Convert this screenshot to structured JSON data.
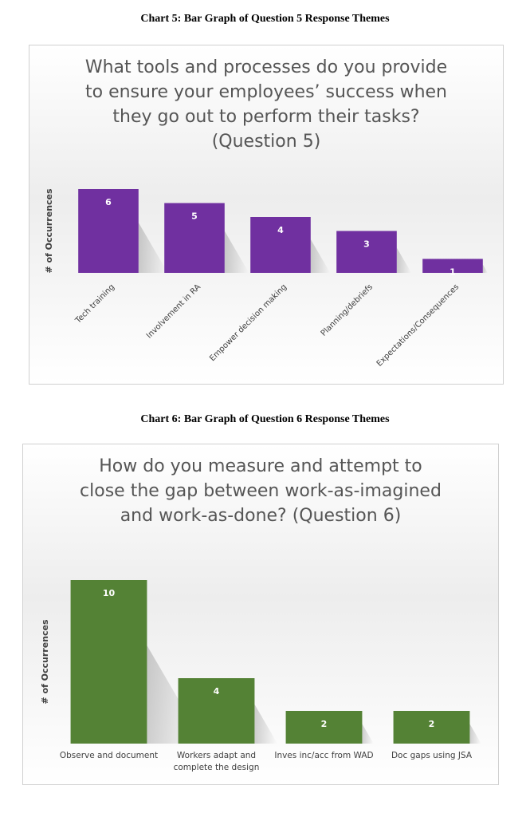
{
  "captions": {
    "chart5": "Chart 5: Bar Graph of Question 5 Response Themes",
    "chart6": "Chart 6: Bar Graph of Question 6 Response Themes"
  },
  "chart_data": [
    {
      "type": "bar",
      "title_lines": [
        "What tools and processes do you provide",
        "to ensure your employees’ success when",
        "they go out to perform their tasks?",
        "(Question 5)"
      ],
      "ylabel": "# of Occurrences",
      "xlabel": "",
      "categories": [
        "Tech training",
        "Involvement in RA",
        "Empower decision making",
        "Planning/debriefs",
        "Expectations/Consequences"
      ],
      "values": [
        6,
        5,
        4,
        3,
        1
      ],
      "data_labels": [
        "6",
        "5",
        "4",
        "3",
        "1"
      ],
      "ylim": [
        0,
        6
      ],
      "grid": false,
      "legend": "none",
      "bar_color": "#7030a0"
    },
    {
      "type": "bar",
      "title_lines": [
        "How do you measure and attempt to",
        "close the gap between work-as-imagined",
        "and work-as-done? (Question 6)"
      ],
      "ylabel": "# of Occurrences",
      "xlabel": "",
      "categories": [
        [
          "Observe and document"
        ],
        [
          "Workers adapt and",
          "complete the design"
        ],
        [
          "Inves inc/acc from WAD"
        ],
        [
          "Doc gaps using JSA"
        ]
      ],
      "values": [
        10,
        4,
        2,
        2
      ],
      "data_labels": [
        "10",
        "4",
        "2",
        "2"
      ],
      "ylim": [
        0,
        10
      ],
      "grid": false,
      "legend": "none",
      "bar_color": "#548235"
    }
  ]
}
